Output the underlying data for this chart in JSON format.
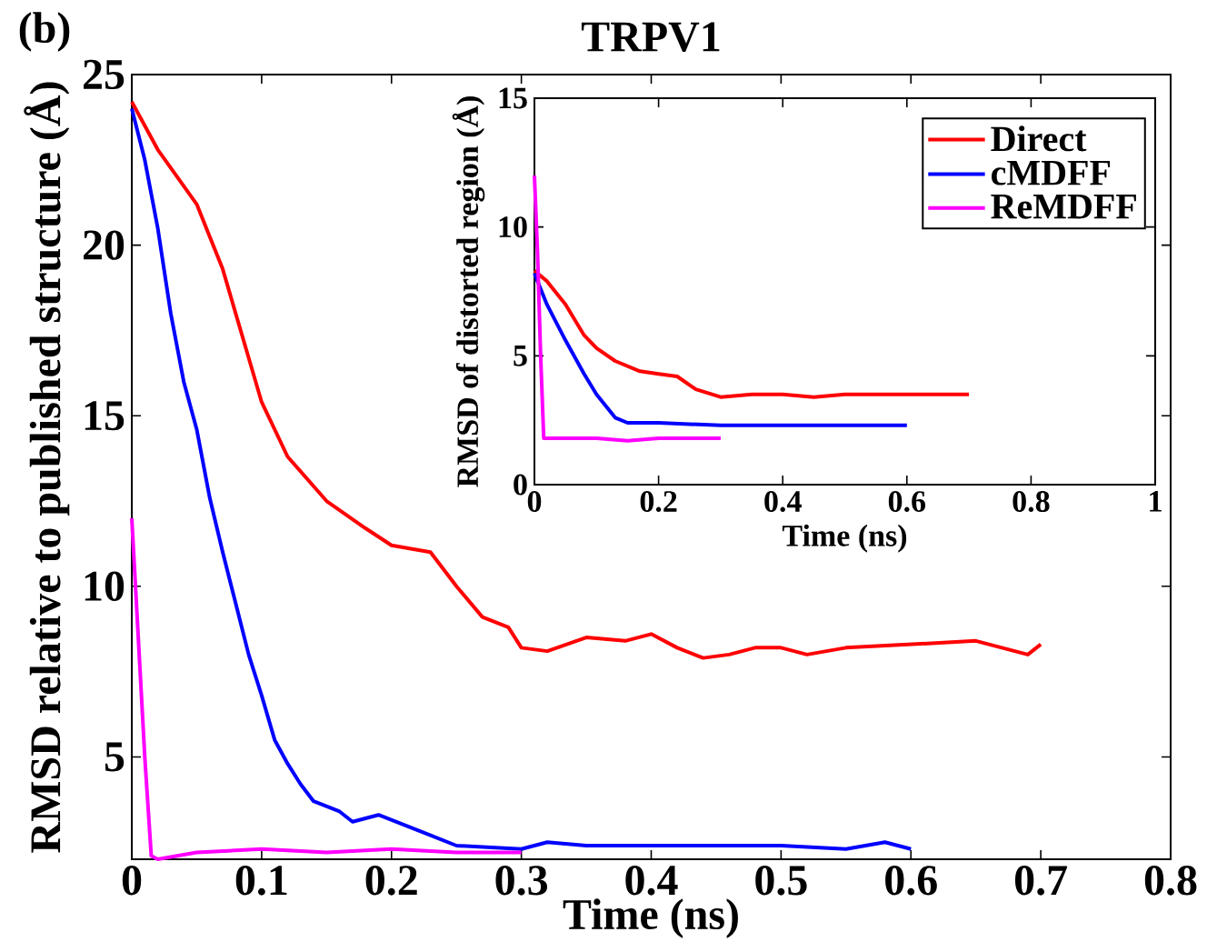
{
  "chart_data": [
    {
      "type": "line",
      "title": "TRPV1",
      "annotations": [
        "(b)"
      ],
      "xlabel": "Time (ns)",
      "ylabel": "RMSD relative to published structure (Å)",
      "xlim": [
        0,
        0.8
      ],
      "ylim": [
        2,
        25
      ],
      "xticks": [
        0,
        0.1,
        0.2,
        0.3,
        0.4,
        0.5,
        0.6,
        0.7,
        0.8
      ],
      "yticks": [
        5,
        10,
        15,
        20,
        25
      ],
      "series": [
        {
          "color": "#ff0000",
          "x": [
            0,
            0.02,
            0.05,
            0.07,
            0.1,
            0.12,
            0.15,
            0.18,
            0.2,
            0.23,
            0.25,
            0.27,
            0.29,
            0.3,
            0.32,
            0.35,
            0.38,
            0.4,
            0.42,
            0.44,
            0.46,
            0.48,
            0.5,
            0.52,
            0.55,
            0.6,
            0.65,
            0.68,
            0.69,
            0.7
          ],
          "values": [
            24.2,
            22.8,
            21.2,
            19.3,
            15.4,
            13.8,
            12.5,
            11.7,
            11.2,
            11.0,
            10.0,
            9.1,
            8.8,
            8.2,
            8.1,
            8.5,
            8.4,
            8.6,
            8.2,
            7.9,
            8.0,
            8.2,
            8.2,
            8.0,
            8.2,
            8.3,
            8.4,
            8.1,
            8.0,
            8.3
          ]
        },
        {
          "color": "#0000ff",
          "x": [
            0,
            0.01,
            0.02,
            0.03,
            0.04,
            0.05,
            0.06,
            0.07,
            0.08,
            0.09,
            0.1,
            0.11,
            0.12,
            0.13,
            0.14,
            0.16,
            0.17,
            0.19,
            0.21,
            0.23,
            0.25,
            0.3,
            0.32,
            0.35,
            0.4,
            0.5,
            0.55,
            0.58,
            0.6
          ],
          "values": [
            24.0,
            22.5,
            20.5,
            18.0,
            16.0,
            14.6,
            12.6,
            11.0,
            9.5,
            8.0,
            6.8,
            5.5,
            4.8,
            4.2,
            3.7,
            3.4,
            3.1,
            3.3,
            3.0,
            2.7,
            2.4,
            2.3,
            2.5,
            2.4,
            2.4,
            2.4,
            2.3,
            2.5,
            2.3
          ]
        },
        {
          "color": "#ff00ff",
          "x": [
            0,
            0.005,
            0.01,
            0.015,
            0.02,
            0.05,
            0.1,
            0.15,
            0.2,
            0.25,
            0.3
          ],
          "values": [
            12.0,
            8.5,
            5.0,
            2.1,
            2.0,
            2.2,
            2.3,
            2.2,
            2.3,
            2.2,
            2.2
          ]
        }
      ]
    },
    {
      "type": "line",
      "xlabel": "Time (ns)",
      "ylabel": "RMSD of distorted region (Å)",
      "xlim": [
        0,
        1
      ],
      "ylim": [
        0,
        15
      ],
      "xticks": [
        0,
        0.2,
        0.4,
        0.6,
        0.8,
        1
      ],
      "yticks": [
        0,
        5,
        10,
        15
      ],
      "legend": "top right",
      "series": [
        {
          "name": "Direct",
          "color": "#ff0000",
          "x": [
            0,
            0.02,
            0.05,
            0.08,
            0.1,
            0.13,
            0.17,
            0.2,
            0.23,
            0.26,
            0.3,
            0.35,
            0.4,
            0.45,
            0.5,
            0.6,
            0.7
          ],
          "values": [
            8.3,
            7.9,
            7.0,
            5.8,
            5.3,
            4.8,
            4.4,
            4.3,
            4.2,
            3.7,
            3.4,
            3.5,
            3.5,
            3.4,
            3.5,
            3.5,
            3.5
          ]
        },
        {
          "name": "cMDFF",
          "color": "#0000ff",
          "x": [
            0,
            0.02,
            0.05,
            0.08,
            0.1,
            0.13,
            0.15,
            0.2,
            0.3,
            0.4,
            0.5,
            0.6
          ],
          "values": [
            8.2,
            7.0,
            5.6,
            4.3,
            3.5,
            2.6,
            2.4,
            2.4,
            2.3,
            2.3,
            2.3,
            2.3
          ]
        },
        {
          "name": "ReMDFF",
          "color": "#ff00ff",
          "x": [
            0,
            0.005,
            0.01,
            0.015,
            0.05,
            0.1,
            0.15,
            0.2,
            0.25,
            0.3
          ],
          "values": [
            12.0,
            9.0,
            5.0,
            1.8,
            1.8,
            1.8,
            1.7,
            1.8,
            1.8,
            1.8
          ]
        }
      ]
    }
  ]
}
